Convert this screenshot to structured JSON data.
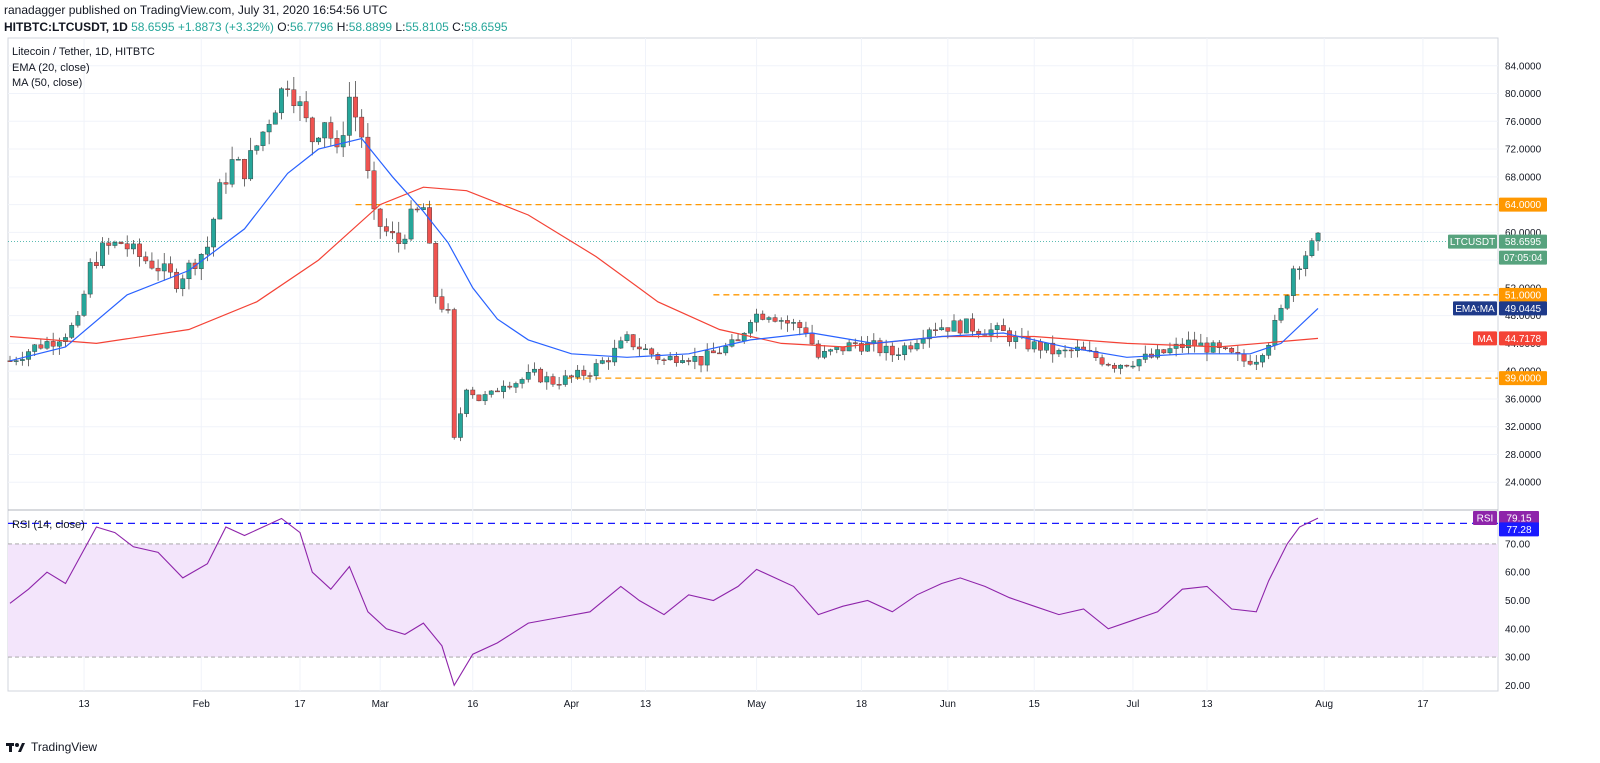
{
  "header": {
    "publisher_line": "ranadagger published on TradingView.com, July 31, 2020 16:54:56 UTC",
    "symbol": "HITBTC:LTCUSDT, 1D",
    "last": "58.6595",
    "change": "+1.8873 (+3.32%)",
    "o_label": "O:",
    "o": "56.7796",
    "h_label": "H:",
    "h": "58.8899",
    "l_label": "L:",
    "l": "55.8105",
    "c_label": "C:",
    "c": "58.6595"
  },
  "legend": {
    "title": "Litecoin / Tether, 1D, HITBTC",
    "ema": "EMA (20, close)",
    "ma": "MA (50, close)",
    "rsi": "RSI (14, close)"
  },
  "colors": {
    "up": "#26a69a",
    "down": "#ef5350",
    "ema": "#2962ff",
    "ma": "#f44336",
    "level": "#ff9800",
    "rsi": "#8e24aa",
    "rsi_band": "#f3e5fb",
    "rsi_dash": "#1a1aff",
    "last_tag": "#57a37e"
  },
  "footer": {
    "brand": "TradingView"
  },
  "chart_data": [
    {
      "type": "candlestick",
      "title": "Litecoin / Tether, 1D, HITBTC",
      "ylim": [
        20,
        88
      ],
      "price_ticks": [
        "84.0000",
        "80.0000",
        "76.0000",
        "72.0000",
        "68.0000",
        "64.0000",
        "60.0000",
        "56.0000",
        "52.0000",
        "48.0000",
        "44.0000",
        "40.0000",
        "36.0000",
        "32.0000",
        "28.0000",
        "24.0000"
      ],
      "x_ticks": [
        "13",
        "Feb",
        "17",
        "Mar",
        "16",
        "Apr",
        "13",
        "May",
        "18",
        "Jun",
        "15",
        "Jul",
        "13",
        "Aug",
        "17"
      ],
      "horizontal_levels": [
        64.0,
        51.0,
        39.0
      ],
      "level_tags": [
        "64.0000",
        "51.0000",
        "39.0000"
      ],
      "last_price_tag": {
        "symbol": "LTCUSDT",
        "value": "58.6595",
        "countdown": "07:05:04"
      },
      "ema_tag": {
        "label": "EMA:MA",
        "value": "49.0445"
      },
      "ma_tag": {
        "label": "MA",
        "value": "44.7178"
      },
      "close_path": [
        [
          "2020-01-01",
          41.5
        ],
        [
          "2020-01-05",
          43.5
        ],
        [
          "2020-01-08",
          44.5
        ],
        [
          "2020-01-10",
          45.5
        ],
        [
          "2020-01-12",
          47.0
        ],
        [
          "2020-01-14",
          55.0
        ],
        [
          "2020-01-16",
          57.5
        ],
        [
          "2020-01-19",
          58.5
        ],
        [
          "2020-01-22",
          56.5
        ],
        [
          "2020-01-25",
          55.0
        ],
        [
          "2020-01-28",
          53.0
        ],
        [
          "2020-01-31",
          56.0
        ],
        [
          "2020-02-02",
          58.0
        ],
        [
          "2020-02-04",
          66.0
        ],
        [
          "2020-02-06",
          70.0
        ],
        [
          "2020-02-08",
          69.0
        ],
        [
          "2020-02-10",
          72.5
        ],
        [
          "2020-02-12",
          76.5
        ],
        [
          "2020-02-13",
          78.5
        ],
        [
          "2020-02-15",
          82.0
        ],
        [
          "2020-02-17",
          78.0
        ],
        [
          "2020-02-19",
          73.5
        ],
        [
          "2020-02-21",
          76.5
        ],
        [
          "2020-02-23",
          71.0
        ],
        [
          "2020-02-25",
          79.5
        ],
        [
          "2020-02-27",
          74.0
        ],
        [
          "2020-02-29",
          62.0
        ],
        [
          "2020-03-02",
          60.0
        ],
        [
          "2020-03-04",
          58.5
        ],
        [
          "2020-03-06",
          62.0
        ],
        [
          "2020-03-08",
          63.5
        ],
        [
          "2020-03-10",
          51.0
        ],
        [
          "2020-03-12",
          48.0
        ],
        [
          "2020-03-13",
          30.0
        ],
        [
          "2020-03-15",
          38.0
        ],
        [
          "2020-03-17",
          36.0
        ],
        [
          "2020-03-19",
          36.5
        ],
        [
          "2020-03-21",
          38.5
        ],
        [
          "2020-03-23",
          38.5
        ],
        [
          "2020-03-26",
          39.5
        ],
        [
          "2020-03-29",
          38.5
        ],
        [
          "2020-04-01",
          39.0
        ],
        [
          "2020-04-04",
          40.0
        ],
        [
          "2020-04-07",
          42.0
        ],
        [
          "2020-04-10",
          44.5
        ],
        [
          "2020-04-13",
          43.0
        ],
        [
          "2020-04-16",
          41.5
        ],
        [
          "2020-04-19",
          42.5
        ],
        [
          "2020-04-22",
          41.5
        ],
        [
          "2020-04-25",
          43.0
        ],
        [
          "2020-04-28",
          44.0
        ],
        [
          "2020-04-30",
          48.0
        ],
        [
          "2020-05-03",
          48.5
        ],
        [
          "2020-05-06",
          47.0
        ],
        [
          "2020-05-09",
          46.0
        ],
        [
          "2020-05-11",
          42.0
        ],
        [
          "2020-05-14",
          43.0
        ],
        [
          "2020-05-17",
          44.0
        ],
        [
          "2020-05-20",
          43.5
        ],
        [
          "2020-05-23",
          42.5
        ],
        [
          "2020-05-26",
          44.0
        ],
        [
          "2020-05-29",
          46.5
        ],
        [
          "2020-06-01",
          46.5
        ],
        [
          "2020-06-04",
          46.5
        ],
        [
          "2020-06-07",
          46.0
        ],
        [
          "2020-06-10",
          45.5
        ],
        [
          "2020-06-13",
          44.0
        ],
        [
          "2020-06-16",
          43.5
        ],
        [
          "2020-06-19",
          42.5
        ],
        [
          "2020-06-22",
          43.0
        ],
        [
          "2020-06-25",
          42.0
        ],
        [
          "2020-06-28",
          41.0
        ],
        [
          "2020-07-01",
          41.5
        ],
        [
          "2020-07-04",
          42.0
        ],
        [
          "2020-07-07",
          43.0
        ],
        [
          "2020-07-10",
          44.0
        ],
        [
          "2020-07-13",
          43.5
        ],
        [
          "2020-07-16",
          42.5
        ],
        [
          "2020-07-19",
          41.5
        ],
        [
          "2020-07-21",
          42.0
        ],
        [
          "2020-07-23",
          44.5
        ],
        [
          "2020-07-25",
          48.5
        ],
        [
          "2020-07-27",
          55.0
        ],
        [
          "2020-07-29",
          57.0
        ],
        [
          "2020-07-31",
          58.66
        ]
      ],
      "ema_path": [
        [
          "2020-01-01",
          41.5
        ],
        [
          "2020-01-10",
          43.5
        ],
        [
          "2020-01-20",
          51.0
        ],
        [
          "2020-01-30",
          54.5
        ],
        [
          "2020-02-08",
          60.5
        ],
        [
          "2020-02-15",
          68.5
        ],
        [
          "2020-02-20",
          72.0
        ],
        [
          "2020-02-27",
          73.5
        ],
        [
          "2020-03-03",
          68.0
        ],
        [
          "2020-03-08",
          63.0
        ],
        [
          "2020-03-12",
          58.5
        ],
        [
          "2020-03-16",
          52.0
        ],
        [
          "2020-03-20",
          47.5
        ],
        [
          "2020-03-25",
          44.5
        ],
        [
          "2020-04-01",
          42.5
        ],
        [
          "2020-04-10",
          42.0
        ],
        [
          "2020-04-20",
          42.5
        ],
        [
          "2020-04-30",
          44.5
        ],
        [
          "2020-05-10",
          45.5
        ],
        [
          "2020-05-20",
          44.0
        ],
        [
          "2020-05-31",
          45.0
        ],
        [
          "2020-06-10",
          45.5
        ],
        [
          "2020-06-20",
          43.5
        ],
        [
          "2020-06-30",
          42.0
        ],
        [
          "2020-07-10",
          42.5
        ],
        [
          "2020-07-20",
          42.5
        ],
        [
          "2020-07-25",
          44.0
        ],
        [
          "2020-07-31",
          49.0445
        ]
      ],
      "ma_path": [
        [
          "2020-01-01",
          45.0
        ],
        [
          "2020-01-15",
          44.0
        ],
        [
          "2020-01-30",
          46.0
        ],
        [
          "2020-02-10",
          50.0
        ],
        [
          "2020-02-20",
          56.0
        ],
        [
          "2020-03-01",
          64.0
        ],
        [
          "2020-03-08",
          66.5
        ],
        [
          "2020-03-15",
          66.0
        ],
        [
          "2020-03-25",
          62.5
        ],
        [
          "2020-04-05",
          56.5
        ],
        [
          "2020-04-15",
          50.0
        ],
        [
          "2020-04-25",
          46.0
        ],
        [
          "2020-05-05",
          44.0
        ],
        [
          "2020-05-15",
          43.5
        ],
        [
          "2020-05-31",
          45.0
        ],
        [
          "2020-06-15",
          45.0
        ],
        [
          "2020-06-30",
          44.0
        ],
        [
          "2020-07-15",
          43.5
        ],
        [
          "2020-07-31",
          44.7178
        ]
      ]
    },
    {
      "type": "line",
      "title": "RSI (14, close)",
      "ylim": [
        18,
        82
      ],
      "y_ticks": [
        "70.00",
        "60.00",
        "50.00",
        "40.00",
        "30.00",
        "20.00"
      ],
      "band": [
        30,
        70
      ],
      "overbought_level": 77.28,
      "rsi_tag": {
        "label": "RSI",
        "value": "79.15"
      },
      "level_tag": "77.28",
      "series": [
        [
          "2020-01-01",
          49
        ],
        [
          "2020-01-04",
          54
        ],
        [
          "2020-01-07",
          60
        ],
        [
          "2020-01-10",
          56
        ],
        [
          "2020-01-13",
          68
        ],
        [
          "2020-01-15",
          76
        ],
        [
          "2020-01-18",
          74
        ],
        [
          "2020-01-21",
          69
        ],
        [
          "2020-01-25",
          67
        ],
        [
          "2020-01-29",
          58
        ],
        [
          "2020-02-02",
          63
        ],
        [
          "2020-02-05",
          76
        ],
        [
          "2020-02-08",
          73
        ],
        [
          "2020-02-11",
          76
        ],
        [
          "2020-02-14",
          79
        ],
        [
          "2020-02-17",
          74
        ],
        [
          "2020-02-19",
          60
        ],
        [
          "2020-02-22",
          54
        ],
        [
          "2020-02-25",
          62
        ],
        [
          "2020-02-28",
          46
        ],
        [
          "2020-03-02",
          40
        ],
        [
          "2020-03-05",
          38
        ],
        [
          "2020-03-08",
          42
        ],
        [
          "2020-03-11",
          34
        ],
        [
          "2020-03-13",
          20
        ],
        [
          "2020-03-16",
          31
        ],
        [
          "2020-03-20",
          35
        ],
        [
          "2020-03-25",
          42
        ],
        [
          "2020-03-30",
          44
        ],
        [
          "2020-04-04",
          46
        ],
        [
          "2020-04-09",
          55
        ],
        [
          "2020-04-12",
          50
        ],
        [
          "2020-04-16",
          45
        ],
        [
          "2020-04-20",
          52
        ],
        [
          "2020-04-24",
          50
        ],
        [
          "2020-04-28",
          55
        ],
        [
          "2020-05-01",
          61
        ],
        [
          "2020-05-04",
          58
        ],
        [
          "2020-05-07",
          55
        ],
        [
          "2020-05-11",
          45
        ],
        [
          "2020-05-15",
          48
        ],
        [
          "2020-05-19",
          50
        ],
        [
          "2020-05-23",
          46
        ],
        [
          "2020-05-27",
          52
        ],
        [
          "2020-05-31",
          56
        ],
        [
          "2020-06-03",
          58
        ],
        [
          "2020-06-07",
          55
        ],
        [
          "2020-06-11",
          51
        ],
        [
          "2020-06-15",
          48
        ],
        [
          "2020-06-19",
          45
        ],
        [
          "2020-06-23",
          47
        ],
        [
          "2020-06-27",
          40
        ],
        [
          "2020-07-01",
          43
        ],
        [
          "2020-07-05",
          46
        ],
        [
          "2020-07-09",
          54
        ],
        [
          "2020-07-13",
          55
        ],
        [
          "2020-07-17",
          47
        ],
        [
          "2020-07-21",
          46
        ],
        [
          "2020-07-23",
          57
        ],
        [
          "2020-07-26",
          70
        ],
        [
          "2020-07-28",
          76
        ],
        [
          "2020-07-31",
          79.15
        ]
      ]
    }
  ]
}
